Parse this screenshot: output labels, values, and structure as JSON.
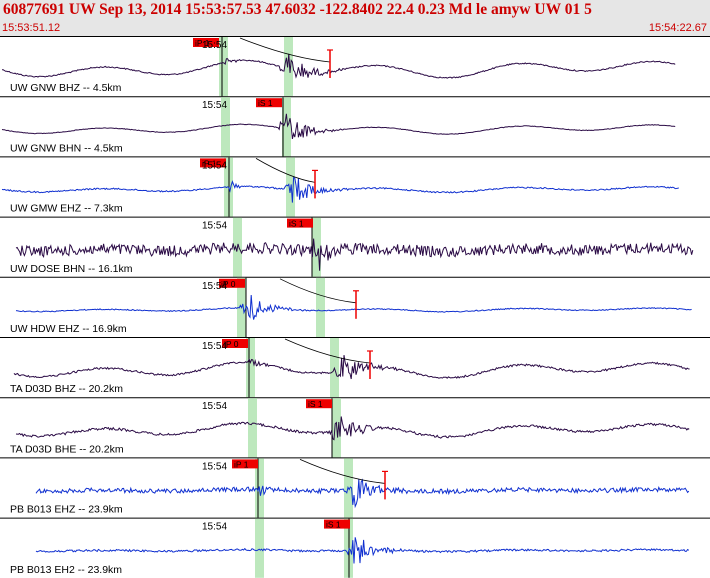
{
  "header": {
    "title": "60877691 UW Sep 13, 2014 15:53:57.53   47.6032 -122.8402 22.4 0.23 Md le amyw UW 01   5",
    "time_start": "15:53:51.12",
    "time_end": "15:54:22.67"
  },
  "colors": {
    "header_bg": "#e6e6e6",
    "header_text": "#cc0000",
    "pick_marker": "#ee0000",
    "window_band": "#bde8bd",
    "trace_dark": "#2a0a45",
    "trace_blue": "#1030d0"
  },
  "time_tick_label": "15:54",
  "traces": [
    {
      "station": "UW GNW BHZ -- 4.5km",
      "pick": "iP 1",
      "s_pick": "",
      "color": "dark"
    },
    {
      "station": "UW GNW BHN -- 4.5km",
      "pick": "iS 1",
      "s_pick": "",
      "color": "dark"
    },
    {
      "station": "UW GMW EHZ -- 7.3km",
      "pick": "iP 1",
      "s_pick": "",
      "color": "blue"
    },
    {
      "station": "UW DOSE BHN -- 16.1km",
      "pick": "iS 1",
      "s_pick": "",
      "color": "dark"
    },
    {
      "station": "UW HDW EHZ -- 16.9km",
      "pick": "iP 0",
      "s_pick": "",
      "color": "blue"
    },
    {
      "station": "TA D03D BHZ -- 20.2km",
      "pick": "iP 0",
      "s_pick": "",
      "color": "dark"
    },
    {
      "station": "TA D03D BHE -- 20.2km",
      "pick": "iS 1",
      "s_pick": "",
      "color": "dark"
    },
    {
      "station": "PB B013 EHZ -- 23.9km",
      "pick": "iP 1",
      "s_pick": "",
      "color": "blue"
    },
    {
      "station": "PB B013 EH2 -- 23.9km",
      "pick": "iS 1",
      "s_pick": "",
      "color": "blue"
    }
  ]
}
